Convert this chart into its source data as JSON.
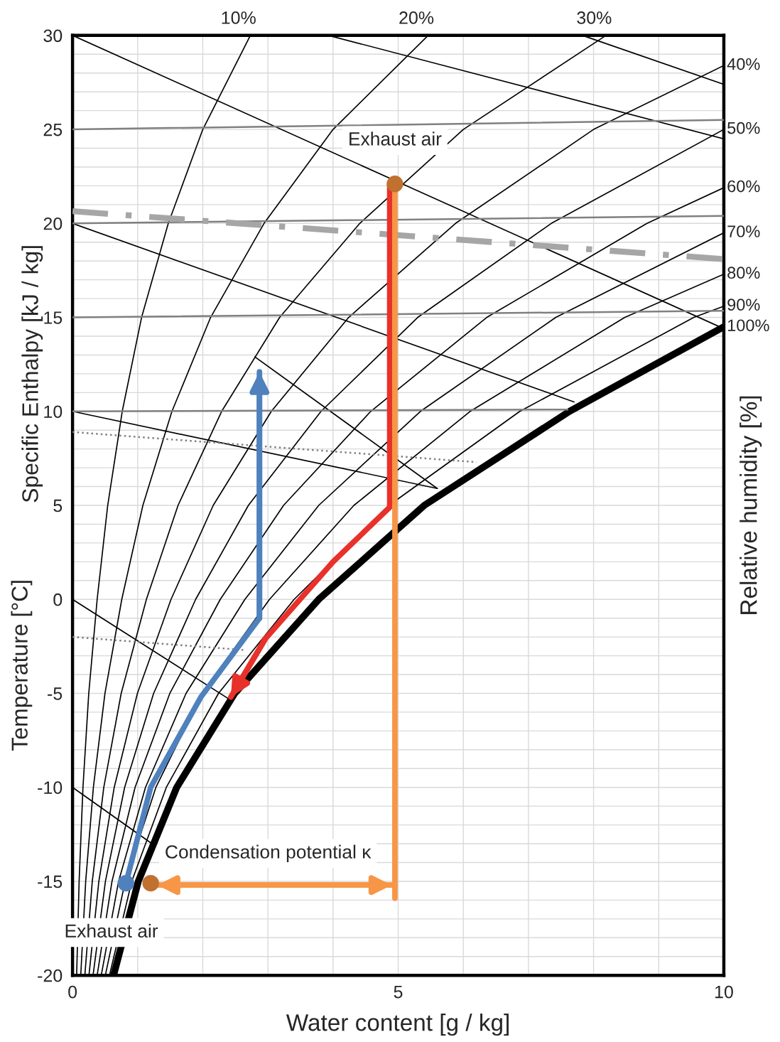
{
  "chart_data": {
    "type": "line",
    "xlabel": "Water content [g / kg]",
    "ylabel": "Temperature [°C]",
    "y2label": "Relative humidity [%]",
    "xlim": [
      0,
      10
    ],
    "ylim": [
      -20,
      30
    ],
    "xticks": [
      0,
      {
        "value": 1,
        "label": null
      },
      {
        "value": 2,
        "label": null
      },
      {
        "value": 3,
        "label": null
      },
      {
        "value": 4,
        "label": null
      },
      5,
      {
        "value": 6,
        "label": null
      },
      {
        "value": 7,
        "label": null
      },
      {
        "value": 8,
        "label": null
      },
      {
        "value": 9,
        "label": null
      },
      10
    ],
    "yticks": [
      -20,
      {
        "value": -19,
        "label": null
      },
      {
        "value": -18,
        "label": null
      },
      {
        "value": -17,
        "label": null
      },
      {
        "value": -16,
        "label": null
      },
      -15,
      {
        "value": -14,
        "label": null
      },
      {
        "value": -13,
        "label": null
      },
      {
        "value": -12,
        "label": null
      },
      {
        "value": -11,
        "label": null
      },
      -10,
      {
        "value": -9,
        "label": null
      },
      {
        "value": -8,
        "label": null
      },
      {
        "value": -7,
        "label": null
      },
      {
        "value": -6,
        "label": null
      },
      -5,
      {
        "value": -4,
        "label": null
      },
      {
        "value": -3,
        "label": null
      },
      {
        "value": -2,
        "label": null
      },
      {
        "value": -1,
        "label": null
      },
      0,
      {
        "value": 1,
        "label": null
      },
      {
        "value": 2,
        "label": null
      },
      {
        "value": 3,
        "label": null
      },
      {
        "value": 4,
        "label": null
      },
      5,
      {
        "value": 6,
        "label": null
      },
      {
        "value": 7,
        "label": null
      },
      {
        "value": 8,
        "label": null
      },
      {
        "value": 9,
        "label": null
      },
      10,
      {
        "value": 11,
        "label": null
      },
      {
        "value": 12,
        "label": null
      },
      {
        "value": 13,
        "label": null
      },
      {
        "value": 14,
        "label": null
      },
      15,
      {
        "value": 16,
        "label": null
      },
      {
        "value": 17,
        "label": null
      },
      {
        "value": 18,
        "label": null
      },
      {
        "value": 19,
        "label": null
      },
      20,
      {
        "value": 21,
        "label": null
      },
      {
        "value": 22,
        "label": null
      },
      {
        "value": 23,
        "label": null
      },
      {
        "value": 24,
        "label": null
      },
      25,
      {
        "value": 26,
        "label": null
      },
      {
        "value": 27,
        "label": null
      },
      {
        "value": 28,
        "label": null
      },
      {
        "value": 29,
        "label": null
      },
      30
    ],
    "grid": true,
    "legend": false,
    "series": [
      {
        "name": "10%",
        "color": "#000000",
        "x": [
          0.063,
          0.101,
          0.16,
          0.249,
          0.378,
          0.54,
          0.763,
          1.06,
          1.47,
          2.0,
          2.73
        ],
        "values": [
          -20,
          -15,
          -10,
          -5,
          0,
          5,
          10,
          15,
          20,
          25,
          30
        ]
      },
      {
        "name": "20%",
        "color": "#000000",
        "x": [
          0.126,
          0.202,
          0.32,
          0.498,
          0.756,
          1.08,
          1.526,
          2.12,
          2.94,
          4.0,
          5.46
        ],
        "values": [
          -20,
          -15,
          -10,
          -5,
          0,
          5,
          10,
          15,
          20,
          25,
          30
        ]
      },
      {
        "name": "30%",
        "color": "#000000",
        "x": [
          0.189,
          0.303,
          0.48,
          0.747,
          1.134,
          1.62,
          2.289,
          3.18,
          4.41,
          6.0,
          8.19
        ],
        "values": [
          -20,
          -15,
          -10,
          -5,
          0,
          5,
          10,
          15,
          20,
          25,
          30
        ]
      },
      {
        "name": "40%",
        "color": "#000000",
        "x": [
          0.252,
          0.404,
          0.64,
          0.996,
          1.512,
          2.16,
          3.052,
          4.24,
          5.88,
          8.0,
          10.0
        ],
        "values": [
          -20,
          -15,
          -10,
          -5,
          0,
          5,
          10,
          15,
          20,
          25,
          28.4
        ]
      },
      {
        "name": "50%",
        "color": "#000000",
        "x": [
          0.315,
          0.505,
          0.8,
          1.245,
          1.89,
          2.7,
          3.815,
          5.3,
          7.35,
          10.0
        ],
        "values": [
          -20,
          -15,
          -10,
          -5,
          0,
          5,
          10,
          15,
          20,
          25
        ]
      },
      {
        "name": "60%",
        "color": "#000000",
        "x": [
          0.378,
          0.606,
          0.96,
          1.494,
          2.268,
          3.24,
          4.578,
          6.36,
          8.82,
          10.0
        ],
        "values": [
          -20,
          -15,
          -10,
          -5,
          0,
          5,
          10,
          15,
          20,
          21.9
        ]
      },
      {
        "name": "70%",
        "color": "#000000",
        "x": [
          0.441,
          0.707,
          1.12,
          1.743,
          2.646,
          3.78,
          5.341,
          7.42,
          10.0
        ],
        "values": [
          -20,
          -15,
          -10,
          -5,
          0,
          5,
          10,
          15,
          19.5
        ]
      },
      {
        "name": "80%",
        "color": "#000000",
        "x": [
          0.504,
          0.808,
          1.28,
          1.992,
          3.024,
          4.32,
          6.104,
          8.48,
          10.0
        ],
        "values": [
          -20,
          -15,
          -10,
          -5,
          0,
          5,
          10,
          15,
          17.3
        ]
      },
      {
        "name": "90%",
        "color": "#000000",
        "x": [
          0.567,
          0.909,
          1.44,
          2.241,
          3.402,
          4.86,
          6.867,
          9.54,
          10.0
        ],
        "values": [
          -20,
          -15,
          -10,
          -5,
          0,
          5,
          10,
          15,
          15.6
        ]
      },
      {
        "name": "100%",
        "color": "#000000",
        "x": [
          0.63,
          1.01,
          1.6,
          2.49,
          3.78,
          5.4,
          7.63,
          10.0
        ],
        "values": [
          -20,
          -15,
          -10,
          -5,
          0,
          5,
          10,
          14.5
        ]
      },
      {
        "color": "#000000",
        "x": [
          0,
          10
        ],
        "values": [
          30,
          14.4
        ]
      },
      {
        "color": "#000000",
        "x": [
          3.93,
          10
        ],
        "values": [
          30,
          24.5
        ]
      },
      {
        "color": "#000000",
        "x": [
          7.83,
          10
        ],
        "values": [
          30,
          27.4
        ]
      },
      {
        "color": "#000000",
        "x": [
          0,
          7.7
        ],
        "values": [
          20,
          10.5
        ]
      },
      {
        "color": "#000000",
        "x": [
          2.8,
          5.6
        ],
        "values": [
          12.9,
          5.9
        ]
      },
      {
        "color": "#000000",
        "x": [
          0,
          5.6
        ],
        "values": [
          10,
          5.9
        ]
      },
      {
        "color": "#000000",
        "x": [
          0,
          2.4
        ],
        "values": [
          0,
          -5.3
        ]
      },
      {
        "color": "#000000",
        "x": [
          0,
          1.22
        ],
        "values": [
          -10,
          -13
        ]
      },
      {
        "color": "#808080",
        "line_style": "dotted",
        "x": [
          0,
          6.2
        ],
        "values": [
          8.9,
          7.3
        ]
      },
      {
        "color": "#808080",
        "line_style": "dotted",
        "x": [
          0,
          2.66
        ],
        "values": [
          -2.0,
          -2.7
        ]
      },
      {
        "color": "#808080",
        "x": [
          0,
          10
        ],
        "values": [
          25,
          25.5
        ]
      },
      {
        "color": "#808080",
        "x": [
          0,
          10
        ],
        "values": [
          20,
          20.4
        ]
      },
      {
        "color": "#808080",
        "x": [
          0,
          10
        ],
        "values": [
          15,
          15.35
        ]
      },
      {
        "color": "#808080",
        "x": [
          0,
          7.6
        ],
        "values": [
          10,
          10.1
        ]
      },
      {
        "color": "#a6a6a6",
        "line_style": "dashed",
        "x": [
          0,
          10
        ],
        "values": [
          20.65,
          18.1
        ]
      },
      {
        "color": "#4f81bd",
        "x": [
          0.82,
          1.2,
          1.97,
          2.87,
          2.87
        ],
        "values": [
          -15.1,
          -10,
          -5.2,
          -1.0,
          12.1
        ]
      },
      {
        "color": "#e8312a",
        "x": [
          4.87,
          4.87,
          4.0,
          2.96,
          2.43
        ],
        "values": [
          22.1,
          4.9,
          2.0,
          -2.1,
          -5.2
        ]
      },
      {
        "color": "#f79646",
        "x": [
          4.95,
          4.95
        ],
        "values": [
          22.1,
          -15.9
        ]
      },
      {
        "color": "#f79646",
        "x": [
          1.3,
          4.9
        ],
        "values": [
          -15.2,
          -15.2
        ]
      },
      {
        "type": "scatter",
        "color": "#4f81bd",
        "marker": "circle",
        "x": [
          0.82
        ],
        "values": [
          -15.1
        ]
      },
      {
        "type": "scatter",
        "color": "#c0712f",
        "marker": "circle",
        "x": [
          4.95,
          1.2
        ],
        "values": [
          22.1,
          -15.1
        ]
      }
    ],
    "annotations": [
      {
        "text": "Exhaust air",
        "x": 4.95,
        "y": 22.1
      },
      {
        "text": "Condensation potential κ",
        "x": 3.0,
        "y": -15.2
      },
      {
        "text": "Exhaust air",
        "x": 1.2,
        "y": -15.1
      },
      "Specific Enthalpy [kJ / kg]"
    ]
  }
}
